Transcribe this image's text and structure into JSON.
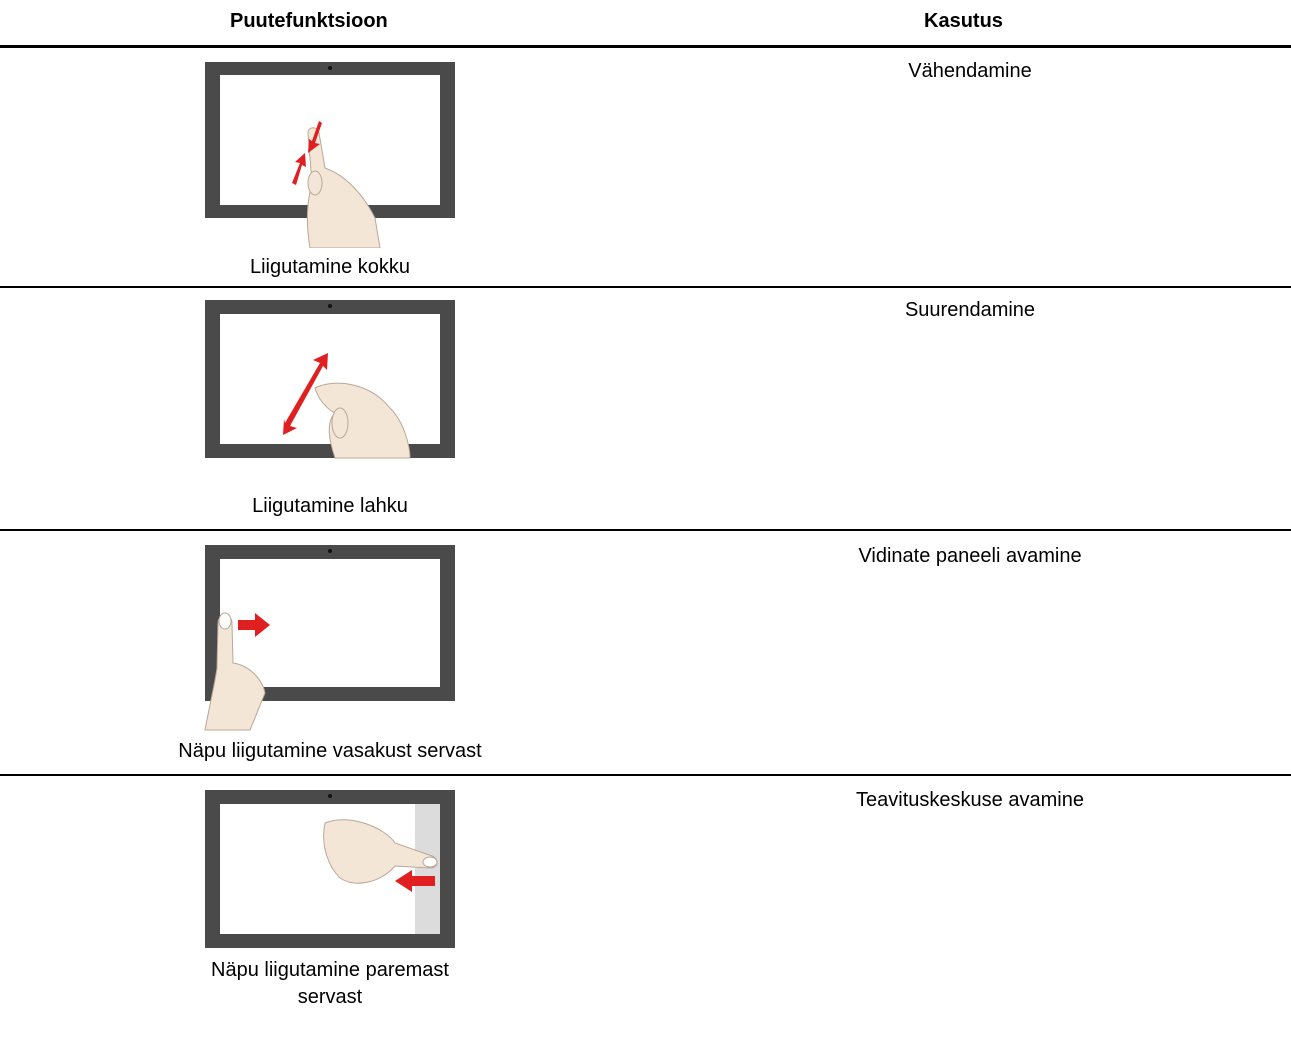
{
  "table": {
    "headers": [
      "Puutefunktsioon",
      "Kasutus"
    ],
    "rows": [
      [
        "Liigutamine kokku",
        "Vähendamine"
      ],
      [
        "Liigutamine lahku",
        "Suurendamine"
      ],
      [
        "Näpu liigutamine vasakust servast",
        "Vidinate paneeli avamine"
      ],
      [
        "Näpu liigutamine paremast servast",
        "Teavituskeskuse avamine"
      ]
    ]
  }
}
